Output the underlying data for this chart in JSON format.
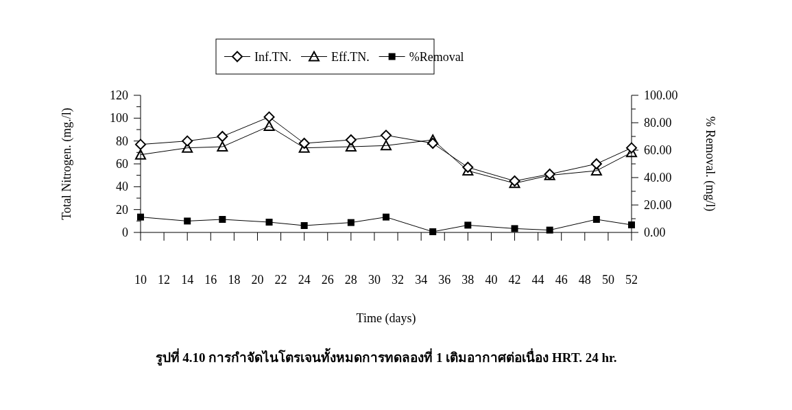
{
  "chart_data": {
    "type": "line",
    "xlabel": "Time (days)",
    "ylabel": "Total Nitrogen. (mg./l)",
    "y2label": "% Removal. (mg/l)",
    "x": [
      10,
      14,
      17,
      21,
      24,
      28,
      31,
      35,
      38,
      42,
      45,
      49,
      52
    ],
    "series": [
      {
        "name": "Inf.TN.",
        "color": "#000000",
        "marker": "diamond",
        "values": [
          77,
          80,
          84,
          101,
          78,
          81,
          85,
          78,
          57,
          45,
          51,
          60,
          74
        ]
      },
      {
        "name": "Eff.TN.",
        "color": "#000000",
        "marker": "triangle",
        "values": [
          68,
          74,
          75,
          93,
          74,
          75,
          76,
          81,
          54,
          43,
          50,
          54,
          70
        ]
      },
      {
        "name": "%Removal",
        "color": "#000000",
        "marker": "square",
        "axis": "y2",
        "values": [
          11.2,
          8.3,
          9.5,
          7.5,
          5,
          7.2,
          11.2,
          0.5,
          5.3,
          2.8,
          1.7,
          9.5,
          5.5
        ]
      }
    ],
    "xlim": [
      10,
      52
    ],
    "xticks": [
      10,
      12,
      14,
      16,
      18,
      20,
      22,
      24,
      26,
      28,
      30,
      32,
      34,
      36,
      38,
      40,
      42,
      44,
      46,
      48,
      50,
      52
    ],
    "ylim": [
      0,
      120
    ],
    "yticks": [
      0,
      20,
      40,
      60,
      80,
      100,
      120
    ],
    "y2lim": [
      0,
      100
    ],
    "y2ticks": [
      {
        "value": 0,
        "label": "0.00"
      },
      {
        "value": 20,
        "label": "20.00"
      },
      {
        "value": 40,
        "label": "40.00"
      },
      {
        "value": 60,
        "label": "60.00"
      },
      {
        "value": 80,
        "label": "80.00"
      },
      {
        "value": 100,
        "label": "100.00"
      }
    ],
    "legend": "top",
    "grid": false,
    "annotations": [
      "รูปที่ 4.10 การกำจัดไนโตรเจนทั้งหมดการทดลองที่ 1 เติมอากาศต่อเนื่อง HRT. 24 hr."
    ]
  }
}
